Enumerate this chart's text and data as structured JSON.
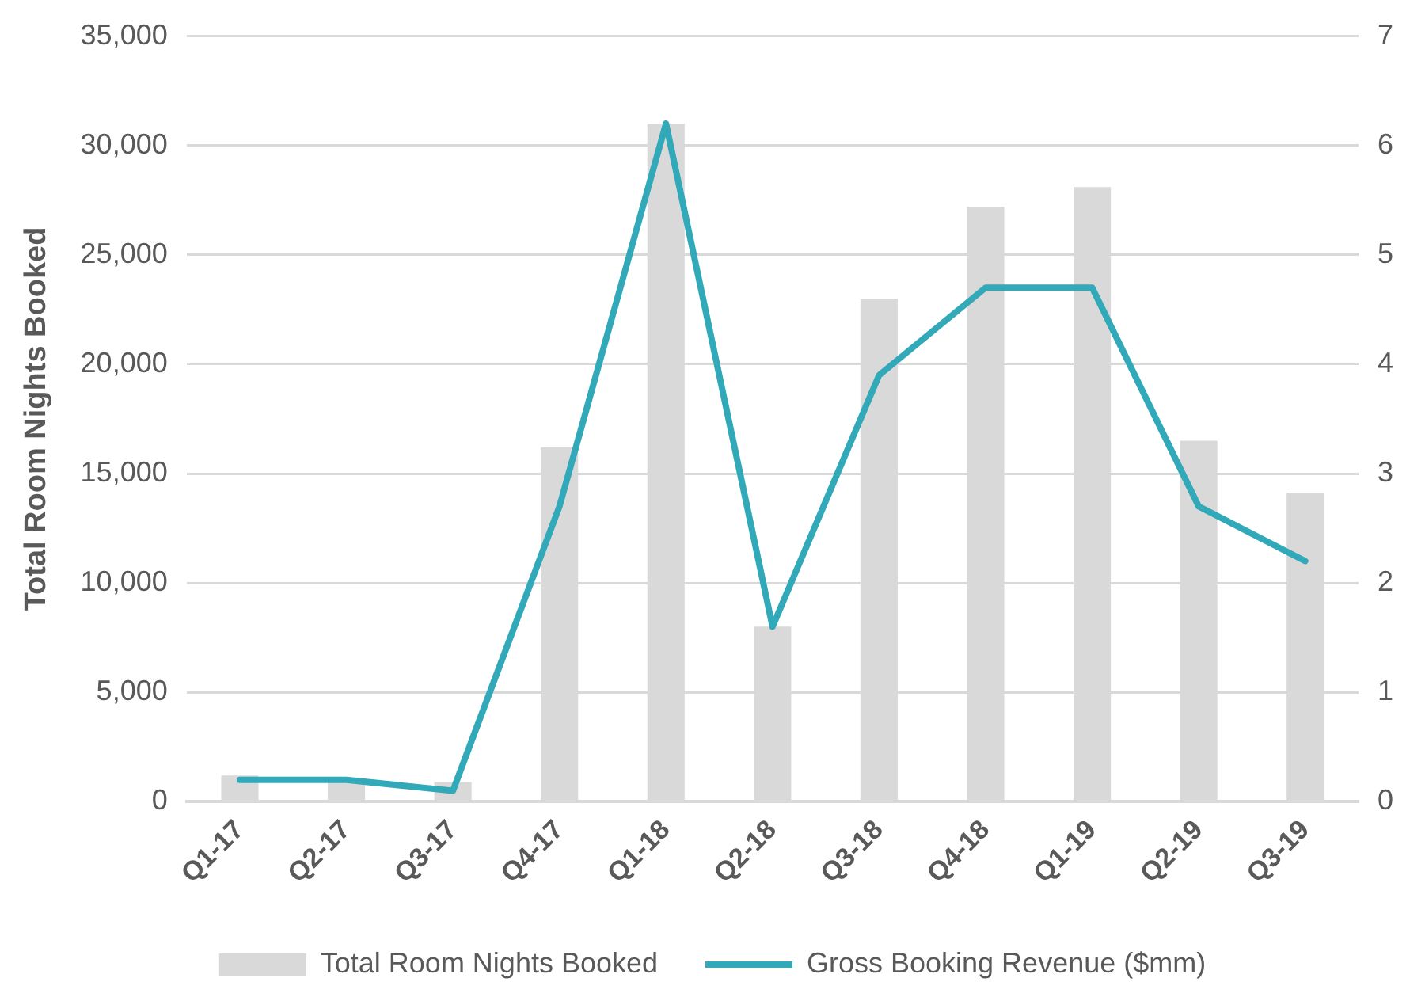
{
  "chart_data": {
    "type": "bar",
    "ylabel": "Total Room Nights Booked",
    "categories": [
      "Q1-17",
      "Q2-17",
      "Q3-17",
      "Q4-17",
      "Q1-18",
      "Q2-18",
      "Q3-18",
      "Q4-18",
      "Q1-19",
      "Q2-19",
      "Q3-19"
    ],
    "series": [
      {
        "name": "Total Room Nights Booked",
        "type": "bar",
        "color": "#d9d9d9",
        "values": [
          1200,
          900,
          900,
          16200,
          31000,
          8000,
          23000,
          27200,
          28100,
          16500,
          14100
        ]
      },
      {
        "name": "Gross Booking Revenue ($mm)",
        "type": "line",
        "axis": "y2",
        "color": "#31a9b8",
        "values": [
          0.2,
          0.2,
          0.1,
          2.7,
          6.2,
          1.6,
          3.9,
          4.7,
          4.7,
          2.7,
          2.2
        ]
      }
    ],
    "ylim": [
      0,
      35000
    ],
    "yticks": [
      0,
      {
        "value": 5000,
        "label": "5,000"
      },
      {
        "value": 10000,
        "label": "10,000"
      },
      {
        "value": 15000,
        "label": "15,000"
      },
      {
        "value": 20000,
        "label": "20,000"
      },
      {
        "value": 25000,
        "label": "25,000"
      },
      {
        "value": 30000,
        "label": "30,000"
      },
      {
        "value": 35000,
        "label": "35,000"
      }
    ],
    "y2lim": [
      0,
      7
    ],
    "y2ticks": [
      0,
      1,
      2,
      3,
      4,
      5,
      6,
      7
    ],
    "grid": "y",
    "legend": "bottom",
    "marker": "none",
    "line_style": "solid"
  }
}
